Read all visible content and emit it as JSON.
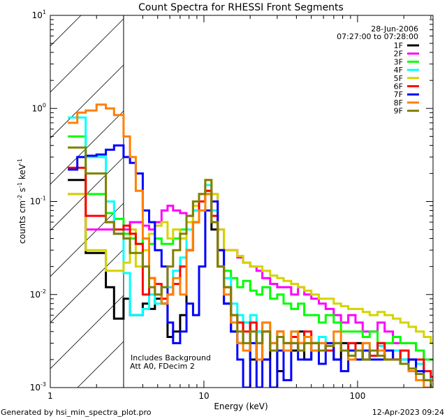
{
  "chart_data": {
    "type": "line",
    "title": "Count Spectra for RHESSI Front Segments",
    "xlabel": "Energy (keV)",
    "ylabel": "counts cm-2 s-1 keV-1",
    "xscale": "log",
    "yscale": "log",
    "xlim": [
      1,
      310
    ],
    "ylim": [
      0.001,
      10
    ],
    "x_ticks": [
      {
        "v": 1,
        "label": "1"
      },
      {
        "v": 10,
        "label": "10"
      },
      {
        "v": 100,
        "label": "100"
      }
    ],
    "y_ticks": [
      {
        "v": 10,
        "base": "10",
        "exp": "1"
      },
      {
        "v": 1,
        "base": "10",
        "exp": "0"
      },
      {
        "v": 0.1,
        "base": "10",
        "exp": "-1"
      },
      {
        "v": 0.01,
        "base": "10",
        "exp": "-2"
      },
      {
        "v": 0.001,
        "base": "10",
        "exp": "-3"
      }
    ],
    "shaded_region": [
      1,
      3
    ],
    "date": "28-Jun-2006",
    "time_range": "07:27:00 to 07:28:00",
    "annotations": [
      "Includes Background",
      "Att A0, FDecim 2"
    ],
    "legend_position": "top-right",
    "energy_edges": [
      1.3,
      1.5,
      1.7,
      2.0,
      2.3,
      2.6,
      3.0,
      3.3,
      3.6,
      4.0,
      4.4,
      4.8,
      5.3,
      5.8,
      6.3,
      7.0,
      7.7,
      8.5,
      9.3,
      10.2,
      11.2,
      12.3,
      13.5,
      15,
      16.5,
      18,
      20,
      22,
      24,
      27,
      30,
      33,
      37,
      41,
      45,
      50,
      56,
      62,
      70,
      78,
      87,
      97,
      108,
      120,
      135,
      150,
      170,
      190,
      215,
      240,
      270,
      300,
      310
    ],
    "series": [
      {
        "name": "1F",
        "color": "#000000",
        "values": [
          0.17,
          0.17,
          0.028,
          0.028,
          0.012,
          0.0055,
          0.009,
          0.006,
          0.006,
          0.008,
          0.007,
          0.009,
          0.008,
          0.0035,
          0.004,
          0.006,
          0.03,
          0.06,
          0.1,
          0.12,
          0.05,
          0.02,
          0.008,
          0.004,
          0.003,
          0.005,
          0.002,
          0.004,
          0.002,
          0.003,
          0.0015,
          0.003,
          0.0025,
          0.004,
          0.002,
          0.003,
          0.0025,
          0.003,
          0.002,
          0.003,
          0.0025,
          0.003,
          0.002,
          0.0025,
          0.003,
          0.002,
          0.0025,
          0.002,
          0.002,
          0.0018,
          0.0015,
          0.0012
        ]
      },
      {
        "name": "2F",
        "color": "#ff00ff",
        "values": [
          0.12,
          0.12,
          0.05,
          0.05,
          0.05,
          0.045,
          0.05,
          0.06,
          0.06,
          0.055,
          0.05,
          0.06,
          0.08,
          0.09,
          0.08,
          0.075,
          0.07,
          0.1,
          0.12,
          0.15,
          0.12,
          0.05,
          0.03,
          0.03,
          0.025,
          0.022,
          0.02,
          0.018,
          0.015,
          0.013,
          0.012,
          0.012,
          0.01,
          0.012,
          0.01,
          0.009,
          0.008,
          0.007,
          0.006,
          0.005,
          0.006,
          0.005,
          0.004,
          0.004,
          0.005,
          0.004,
          0.003,
          0.003,
          0.003,
          0.0025,
          0.002,
          0.002
        ]
      },
      {
        "name": "3F",
        "color": "#00ff00",
        "values": [
          0.5,
          0.5,
          0.12,
          0.12,
          0.075,
          0.065,
          0.045,
          0.04,
          0.035,
          0.04,
          0.035,
          0.04,
          0.035,
          0.035,
          0.04,
          0.05,
          0.06,
          0.08,
          0.1,
          0.13,
          0.08,
          0.03,
          0.018,
          0.015,
          0.012,
          0.014,
          0.011,
          0.01,
          0.012,
          0.009,
          0.01,
          0.008,
          0.007,
          0.008,
          0.006,
          0.006,
          0.005,
          0.006,
          0.005,
          0.004,
          0.004,
          0.004,
          0.0035,
          0.004,
          0.003,
          0.003,
          0.0035,
          0.003,
          0.003,
          0.0025,
          0.002,
          0.002
        ]
      },
      {
        "name": "4F",
        "color": "#00ffff",
        "values": [
          0.8,
          0.8,
          0.3,
          0.3,
          0.1,
          0.045,
          0.017,
          0.006,
          0.006,
          0.007,
          0.01,
          0.008,
          0.012,
          0.012,
          0.018,
          0.025,
          0.05,
          0.08,
          0.12,
          0.15,
          0.08,
          0.03,
          0.015,
          0.008,
          0.006,
          0.005,
          0.006,
          0.004,
          0.005,
          0.003,
          0.004,
          0.003,
          0.004,
          0.003,
          0.0035,
          0.003,
          0.0035,
          0.003,
          0.003,
          0.0025,
          0.003,
          0.0025,
          0.003,
          0.0025,
          0.0028,
          0.0025,
          0.0025,
          0.002,
          0.002,
          0.0018,
          0.0015,
          0.0012
        ]
      },
      {
        "name": "5F",
        "color": "#d4d400",
        "values": [
          0.12,
          0.12,
          0.03,
          0.03,
          0.018,
          0.018,
          0.022,
          0.05,
          0.02,
          0.03,
          0.045,
          0.055,
          0.06,
          0.04,
          0.05,
          0.04,
          0.06,
          0.09,
          0.12,
          0.17,
          0.12,
          0.05,
          0.03,
          0.03,
          0.026,
          0.022,
          0.02,
          0.02,
          0.018,
          0.016,
          0.015,
          0.014,
          0.013,
          0.012,
          0.011,
          0.01,
          0.009,
          0.009,
          0.008,
          0.0075,
          0.007,
          0.007,
          0.0065,
          0.006,
          0.0065,
          0.006,
          0.0055,
          0.005,
          0.0045,
          0.004,
          0.0035,
          0.003
        ]
      },
      {
        "name": "6F",
        "color": "#ff0000",
        "values": [
          0.23,
          0.23,
          0.07,
          0.07,
          0.06,
          0.05,
          0.055,
          0.045,
          0.035,
          0.01,
          0.015,
          0.013,
          0.009,
          0.01,
          0.013,
          0.02,
          0.03,
          0.06,
          0.1,
          0.13,
          0.07,
          0.03,
          0.012,
          0.006,
          0.005,
          0.004,
          0.005,
          0.003,
          0.004,
          0.003,
          0.004,
          0.003,
          0.0035,
          0.003,
          0.004,
          0.003,
          0.003,
          0.0025,
          0.003,
          0.0025,
          0.003,
          0.0025,
          0.0025,
          0.0022,
          0.003,
          0.0025,
          0.002,
          0.0025,
          0.002,
          0.002,
          0.0015,
          0.0013
        ]
      },
      {
        "name": "7F",
        "color": "#0000ff",
        "values": [
          0.22,
          0.3,
          0.31,
          0.32,
          0.36,
          0.4,
          0.3,
          0.26,
          0.2,
          0.08,
          0.06,
          0.03,
          0.02,
          0.005,
          0.003,
          0.004,
          0.008,
          0.006,
          0.02,
          0.08,
          0.1,
          0.03,
          0.008,
          0.004,
          0.002,
          0.001,
          0.003,
          0.001,
          0.002,
          0.001,
          0.0025,
          0.0012,
          0.003,
          0.002,
          0.002,
          0.0025,
          0.0018,
          0.003,
          0.002,
          0.0015,
          0.0025,
          0.002,
          0.0025,
          0.002,
          0.002,
          0.0025,
          0.002,
          0.0018,
          0.002,
          0.0015,
          0.0012,
          0.001
        ]
      },
      {
        "name": "8F",
        "color": "#ff8000",
        "values": [
          0.7,
          0.9,
          0.95,
          1.1,
          1.0,
          0.85,
          0.5,
          0.3,
          0.13,
          0.04,
          0.015,
          0.01,
          0.008,
          0.01,
          0.015,
          0.01,
          0.03,
          0.06,
          0.08,
          0.12,
          0.06,
          0.02,
          0.01,
          0.005,
          0.003,
          0.0025,
          0.004,
          0.002,
          0.005,
          0.003,
          0.004,
          0.0025,
          0.004,
          0.003,
          0.0035,
          0.0025,
          0.003,
          0.0028,
          0.004,
          0.0025,
          0.002,
          0.0025,
          0.003,
          0.0025,
          0.0025,
          0.002,
          0.002,
          0.0018,
          0.0015,
          0.0012,
          0.001,
          0.0012
        ]
      },
      {
        "name": "9F",
        "color": "#808000",
        "values": [
          0.38,
          0.38,
          0.2,
          0.2,
          0.06,
          0.045,
          0.04,
          0.028,
          0.028,
          0.02,
          0.012,
          0.01,
          0.012,
          0.02,
          0.03,
          0.045,
          0.07,
          0.1,
          0.12,
          0.17,
          0.06,
          0.02,
          0.012,
          0.006,
          0.004,
          0.003,
          0.004,
          0.003,
          0.004,
          0.0025,
          0.0035,
          0.003,
          0.003,
          0.0025,
          0.003,
          0.003,
          0.0025,
          0.0028,
          0.003,
          0.0025,
          0.0022,
          0.0025,
          0.002,
          0.0025,
          0.0022,
          0.002,
          0.002,
          0.0018,
          0.0016,
          0.0014,
          0.0012,
          0.001
        ]
      }
    ]
  },
  "footer": {
    "generated_by": "Generated by hsi_min_spectra_plot.pro",
    "timestamp": "12-Apr-2023 09:24"
  }
}
